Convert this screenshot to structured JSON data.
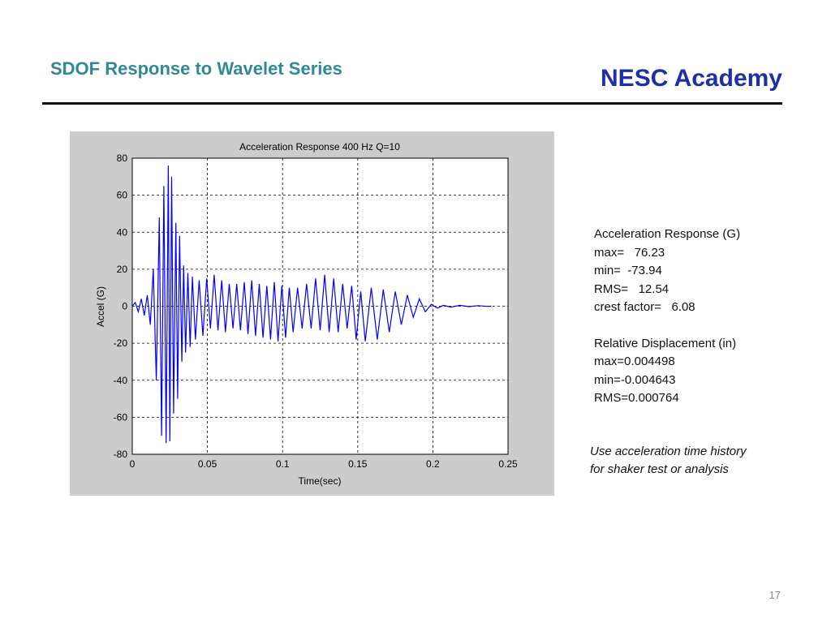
{
  "slide": {
    "title": "SDOF Response to Wavelet Series",
    "brand": "NESC Academy",
    "page_number": "17"
  },
  "results": {
    "accel_header": "Acceleration Response (G)",
    "accel_max": "max=   76.23",
    "accel_min": "min=  -73.94",
    "accel_rms": "RMS=   12.54",
    "crest_factor": "crest factor=   6.08",
    "disp_header": "Relative Displacement (in)",
    "disp_max": "max=0.004498",
    "disp_min": "min=-0.004643",
    "disp_rms": "RMS=0.000764"
  },
  "note": {
    "line1": "Use acceleration time history",
    "line2": "for shaker test or analysis"
  },
  "colors": {
    "title": "#2f8a94",
    "brand": "#1f2fa8",
    "trace": "#0000ff",
    "figure_bg": "#cccccc"
  },
  "chart_data": {
    "type": "line",
    "title": "Acceleration Response 400 Hz  Q=10",
    "xlabel": "Time(sec)",
    "ylabel": "Accel (G)",
    "xlim": [
      0,
      0.25
    ],
    "ylim": [
      -80,
      80
    ],
    "xticks": [
      0,
      0.05,
      0.1,
      0.15,
      0.2,
      0.25
    ],
    "xtick_labels": [
      "0",
      "0.05",
      "0.1",
      "0.15",
      "0.2",
      "0.25"
    ],
    "yticks": [
      80,
      60,
      40,
      20,
      0,
      -20,
      -40,
      -60,
      -80
    ],
    "ytick_labels": [
      "80",
      "60",
      "40",
      "20",
      "0",
      "-20",
      "-40",
      "-60",
      "-80"
    ],
    "grid": true,
    "series": [
      {
        "x": [
          0,
          0.002,
          0.004,
          0.006,
          0.008,
          0.01,
          0.012,
          0.014,
          0.016,
          0.018,
          0.0195,
          0.021,
          0.0225,
          0.024,
          0.025,
          0.0262,
          0.0275,
          0.029,
          0.0302,
          0.0315,
          0.033,
          0.0342,
          0.0355,
          0.037,
          0.0385,
          0.04,
          0.042,
          0.0445,
          0.047,
          0.0495,
          0.052,
          0.0545,
          0.057,
          0.0595,
          0.062,
          0.0645,
          0.067,
          0.0695,
          0.072,
          0.0745,
          0.077,
          0.0795,
          0.082,
          0.0845,
          0.087,
          0.0895,
          0.092,
          0.0945,
          0.097,
          0.0995,
          0.102,
          0.1045,
          0.107,
          0.11,
          0.113,
          0.116,
          0.119,
          0.122,
          0.125,
          0.128,
          0.131,
          0.134,
          0.137,
          0.14,
          0.143,
          0.146,
          0.149,
          0.152,
          0.155,
          0.159,
          0.163,
          0.167,
          0.171,
          0.175,
          0.179,
          0.183,
          0.187,
          0.191,
          0.195,
          0.199,
          0.203,
          0.207,
          0.212,
          0.218,
          0.224,
          0.23,
          0.236,
          0.239
        ],
        "y": [
          0,
          2,
          -3,
          4,
          -5,
          6,
          -10,
          20,
          -40,
          48,
          -70,
          65,
          -74,
          76,
          -73,
          70,
          -58,
          45,
          -50,
          38,
          -30,
          22,
          -25,
          18,
          -22,
          16,
          -18,
          14,
          -16,
          15,
          -12,
          17,
          -13,
          14,
          -14,
          12,
          -12,
          12,
          -13,
          13,
          -15,
          14,
          -16,
          12,
          -17,
          11,
          -18,
          13,
          -19,
          11,
          -17,
          10,
          -14,
          10,
          -12,
          12,
          -12,
          15,
          -13,
          17,
          -14,
          15,
          -14,
          12,
          -12,
          11,
          -18,
          8,
          -19,
          10,
          -18,
          9,
          -14,
          8,
          -10,
          6,
          -6,
          4,
          -3,
          1,
          -1,
          0.5,
          -0.5,
          0.5,
          -0.2,
          0.3,
          -0.1,
          0
        ]
      }
    ]
  }
}
